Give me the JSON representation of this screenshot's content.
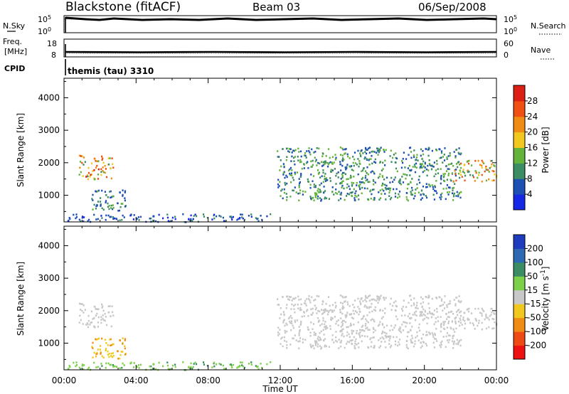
{
  "header": {
    "station": "Blackstone (fitACF)",
    "beam": "Beam 03",
    "date": "06/Sep/2008"
  },
  "nsky_panel": {
    "left_label": "N.Sky",
    "left_ticks": [
      "10^5",
      "10^0"
    ],
    "right_ticks": [
      "10^5",
      "10^0"
    ],
    "right_label": "N.Search"
  },
  "freq_panel": {
    "left_label_1": "Freq.",
    "left_label_2": "[MHz]",
    "left_ticks": [
      "18",
      "8"
    ],
    "right_ticks": [
      "60",
      "0"
    ],
    "right_label": "Nave"
  },
  "cpid_panel": {
    "label": "CPID",
    "mode": "themis (tau) 3310"
  },
  "colors": {
    "power_scale": [
      "#1428e6",
      "#1e50b4",
      "#3c8c64",
      "#64b43c",
      "#f0c81e",
      "#f08c14",
      "#f05014",
      "#dc1e14"
    ],
    "velocity_scale": [
      "#ee1111",
      "#f04a14",
      "#f08c14",
      "#f0c81e",
      "#c8c8c8",
      "#7cd04a",
      "#3c8c64",
      "#2e6ab4",
      "#1e3cbe"
    ],
    "ground_scatter": "#c8c8c8"
  },
  "chart_data": [
    {
      "type": "heatmap",
      "title": "Power",
      "ylabel": "Slant Range [km]",
      "xlim": [
        0,
        24
      ],
      "ylim": [
        180,
        4600
      ],
      "y_ticks": [
        1000,
        2000,
        3000,
        4000
      ],
      "colorbar": {
        "label": "Power [dB]",
        "range": [
          0,
          32
        ],
        "ticks": [
          "4",
          "8",
          "12",
          "16",
          "20",
          "24",
          "28"
        ]
      },
      "regions": [
        {
          "t": [
            0.8,
            2.7
          ],
          "r": [
            1500,
            2250
          ],
          "level": [
            10,
            30
          ]
        },
        {
          "t": [
            1.5,
            3.5
          ],
          "r": [
            550,
            1200
          ],
          "level": [
            4,
            14
          ]
        },
        {
          "t": [
            0.0,
            11.5
          ],
          "r": [
            200,
            450
          ],
          "level": [
            2,
            10
          ]
        },
        {
          "t": [
            11.8,
            22.0
          ],
          "r": [
            850,
            2500
          ],
          "level": [
            4,
            16
          ]
        },
        {
          "t": [
            21.5,
            24.0
          ],
          "r": [
            1450,
            2100
          ],
          "level": [
            8,
            28
          ]
        }
      ]
    },
    {
      "type": "heatmap",
      "title": "Velocity",
      "ylabel": "Slant Range [km]",
      "xlabel": "Time UT",
      "xlim": [
        0,
        24
      ],
      "ylim": [
        180,
        4600
      ],
      "y_ticks": [
        1000,
        2000,
        3000,
        4000
      ],
      "x_ticks": [
        "00:00",
        "04:00",
        "08:00",
        "12:00",
        "16:00",
        "20:00",
        "00:00"
      ],
      "colorbar": {
        "label": "Velocity [m s^-1]",
        "range": [
          -250,
          250
        ],
        "ticks": [
          "200",
          "100",
          "50",
          "15",
          "-15",
          "-50",
          "-100",
          "-200"
        ]
      },
      "regions": [
        {
          "t": [
            0.8,
            2.7
          ],
          "r": [
            1500,
            2250
          ],
          "velocity": [
            -15,
            15
          ]
        },
        {
          "t": [
            1.5,
            3.5
          ],
          "r": [
            550,
            1200
          ],
          "velocity": [
            -60,
            -20
          ]
        },
        {
          "t": [
            0.0,
            11.5
          ],
          "r": [
            200,
            450
          ],
          "velocity": [
            15,
            60
          ]
        },
        {
          "t": [
            11.8,
            22.0
          ],
          "r": [
            850,
            2500
          ],
          "velocity": [
            -15,
            15
          ]
        },
        {
          "t": [
            21.5,
            24.0
          ],
          "r": [
            1450,
            2100
          ],
          "velocity": [
            -15,
            15
          ]
        }
      ]
    }
  ]
}
